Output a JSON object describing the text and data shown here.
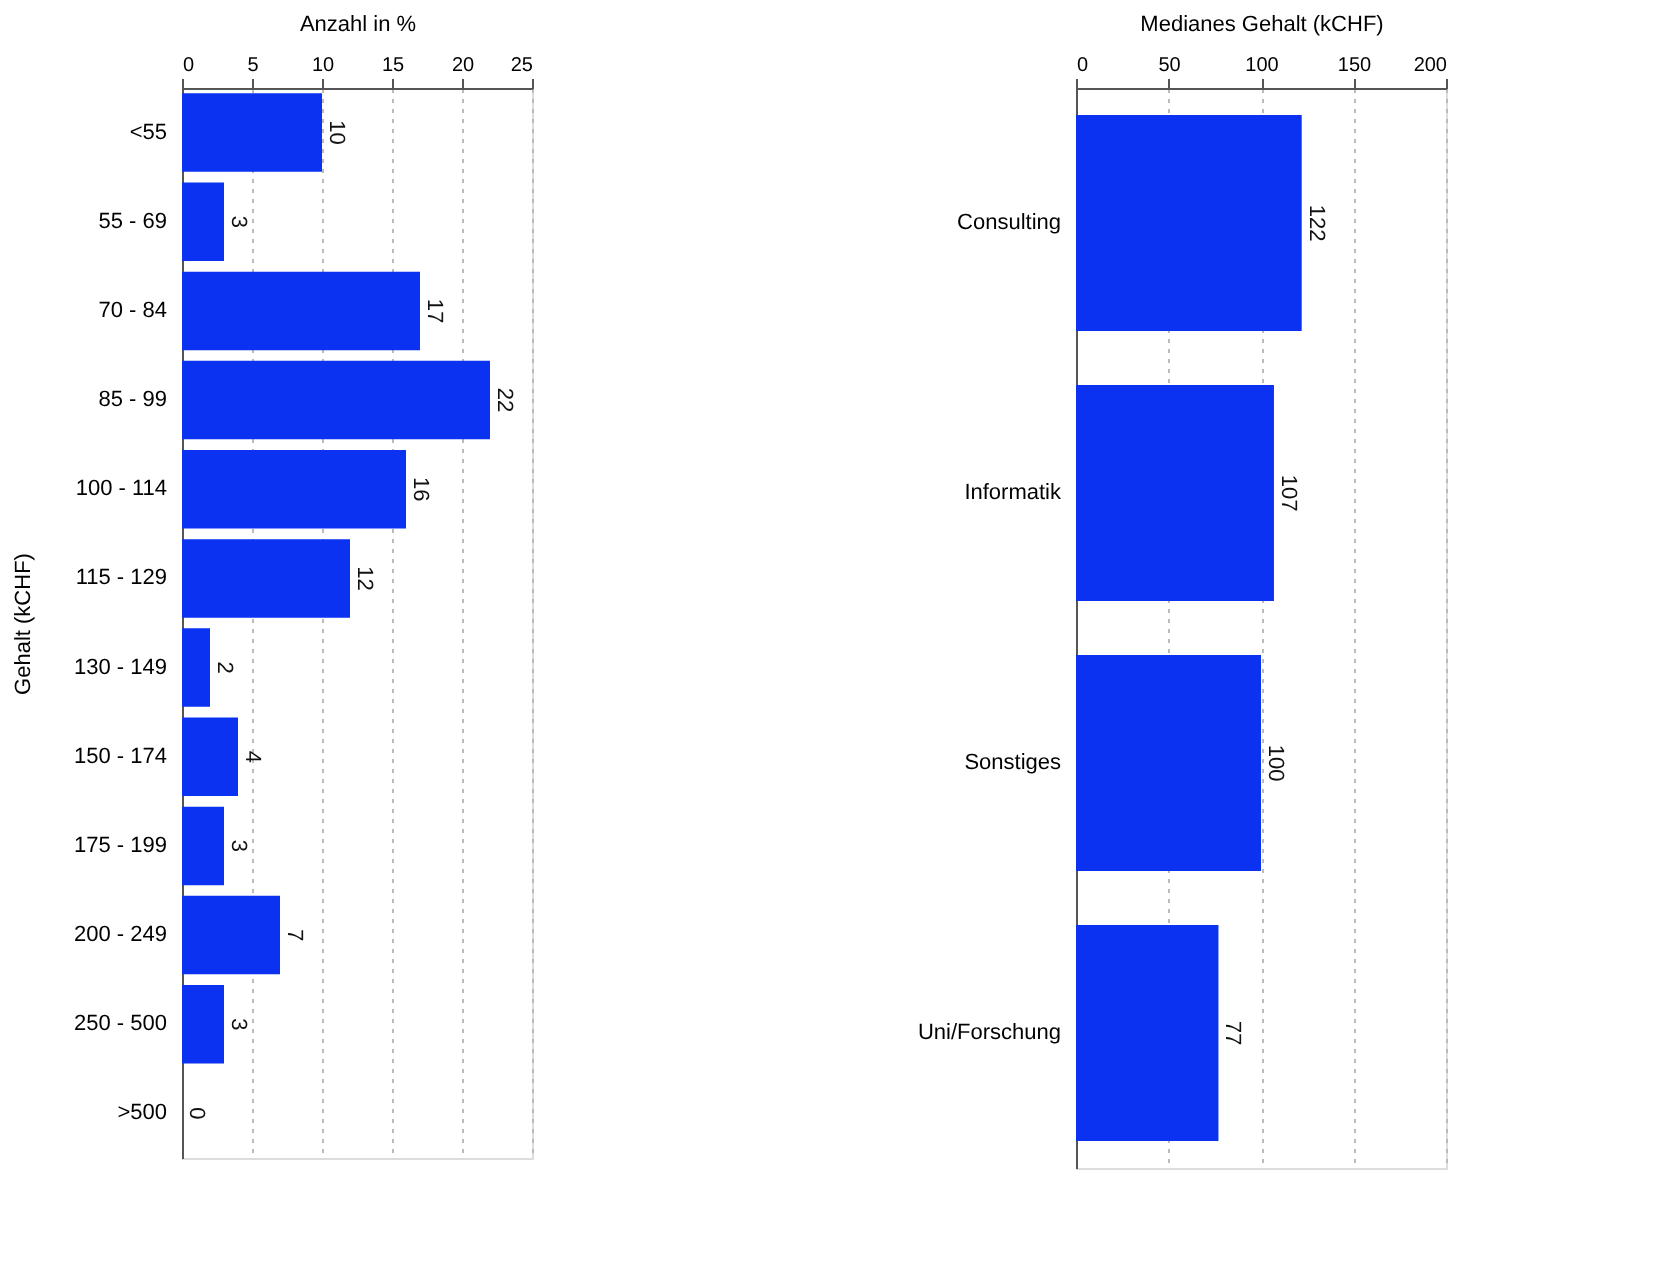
{
  "chart_data": [
    {
      "type": "bar",
      "orientation": "horizontal",
      "xlabel": "Anzahl in %",
      "ylabel": "Gehalt (kCHF)",
      "categories": [
        "<55",
        "55 - 69",
        "70 - 84",
        "85 - 99",
        "100 - 114",
        "115 - 129",
        "130 - 149",
        "150 - 174",
        "175 - 199",
        "200 - 249",
        "250 - 500",
        ">500"
      ],
      "values": [
        10,
        3,
        17,
        22,
        16,
        12,
        2,
        4,
        3,
        7,
        3,
        0
      ],
      "color": "#0a32f0",
      "xlim": [
        0,
        25
      ],
      "xticks": [
        0,
        5,
        10,
        15,
        20,
        25
      ],
      "grid": "x",
      "data_labels": true
    },
    {
      "type": "bar",
      "orientation": "horizontal",
      "xlabel": "Medianes Gehalt (kCHF)",
      "categories": [
        "Consulting",
        "Informatik",
        "Sonstiges",
        "Uni/Forschung"
      ],
      "values": [
        122,
        107,
        100,
        77
      ],
      "color": "#0a32f0",
      "xlim": [
        0,
        200
      ],
      "xticks": [
        0,
        50,
        100,
        150,
        200
      ],
      "grid": "x",
      "data_labels": true
    }
  ]
}
